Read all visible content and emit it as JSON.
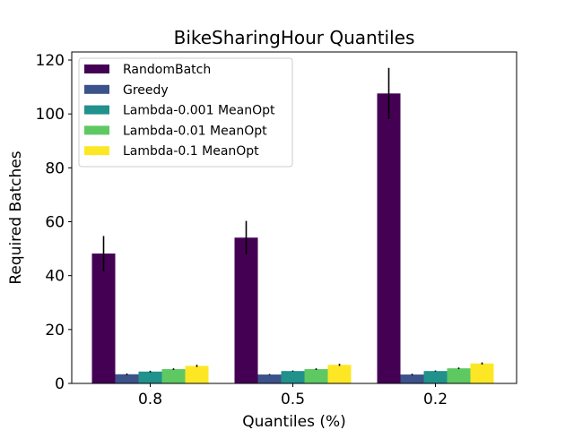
{
  "chart_data": {
    "type": "bar",
    "title": "BikeSharingHour Quantiles",
    "xlabel": "Quantiles (%)",
    "ylabel": "Required Batches",
    "ylim": [
      0,
      123
    ],
    "yticks": [
      0,
      20,
      40,
      60,
      80,
      100,
      120
    ],
    "categories": [
      "0.8",
      "0.5",
      "0.2"
    ],
    "legend_position": "top-left",
    "series": [
      {
        "name": "RandomBatch",
        "color": "#440154",
        "values": [
          48.2,
          54.1,
          107.6
        ],
        "errors": [
          6.5,
          6.2,
          9.5
        ]
      },
      {
        "name": "Greedy",
        "color": "#3b528b",
        "values": [
          3.4,
          3.3,
          3.3
        ],
        "errors": [
          0.3,
          0.2,
          0.3
        ]
      },
      {
        "name": "Lambda-0.001 MeanOpt",
        "color": "#21918c",
        "values": [
          4.4,
          4.6,
          4.6
        ],
        "errors": [
          0.3,
          0.2,
          0.2
        ]
      },
      {
        "name": "Lambda-0.01 MeanOpt",
        "color": "#5ec962",
        "values": [
          5.3,
          5.3,
          5.6
        ],
        "errors": [
          0.3,
          0.3,
          0.3
        ]
      },
      {
        "name": "Lambda-0.1 MeanOpt",
        "color": "#fde725",
        "values": [
          6.5,
          6.9,
          7.4
        ],
        "errors": [
          0.4,
          0.4,
          0.4
        ]
      }
    ]
  }
}
